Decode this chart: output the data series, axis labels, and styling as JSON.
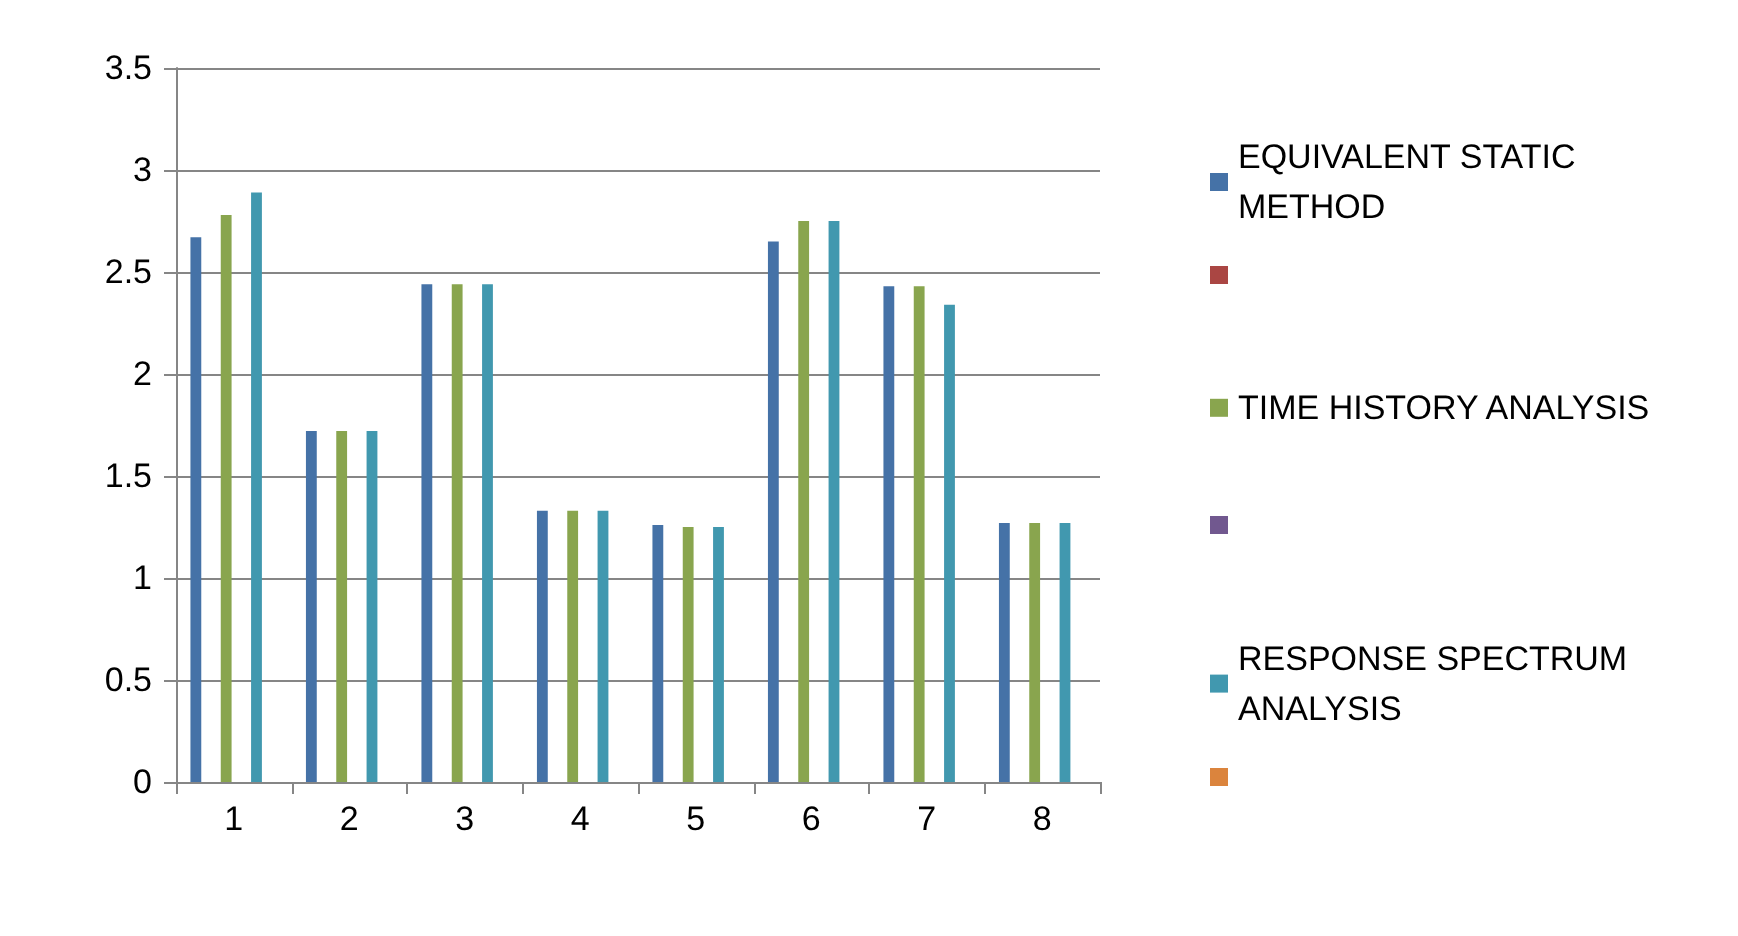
{
  "chart_data": {
    "type": "bar",
    "categories": [
      "1",
      "2",
      "3",
      "4",
      "5",
      "6",
      "7",
      "8"
    ],
    "series": [
      {
        "name": "EQUIVALENT STATIC METHOD",
        "color": "#4572a7",
        "values": [
          2.67,
          1.72,
          2.44,
          1.33,
          1.26,
          2.65,
          2.43,
          1.27
        ]
      },
      {
        "color": "#aa4643",
        "values": [
          null,
          null,
          null,
          null,
          null,
          null,
          null,
          null
        ]
      },
      {
        "name": "TIME HISTORY ANALYSIS",
        "color": "#89a54e",
        "values": [
          2.78,
          1.72,
          2.44,
          1.33,
          1.25,
          2.75,
          2.43,
          1.27
        ]
      },
      {
        "color": "#71588f",
        "values": [
          null,
          null,
          null,
          null,
          null,
          null,
          null,
          null
        ]
      },
      {
        "name": "RESPONSE SPECTRUM ANALYSIS",
        "color": "#4198af",
        "values": [
          2.89,
          1.72,
          2.44,
          1.33,
          1.25,
          2.75,
          2.34,
          1.27
        ]
      },
      {
        "color": "#db843d",
        "values": [
          null,
          null,
          null,
          null,
          null,
          null,
          null,
          null
        ]
      }
    ],
    "ylim": [
      0,
      3.5
    ],
    "yticks": [
      0,
      0.5,
      1,
      1.5,
      2,
      2.5,
      3,
      3.5
    ],
    "grid": "y",
    "legend": "right"
  }
}
